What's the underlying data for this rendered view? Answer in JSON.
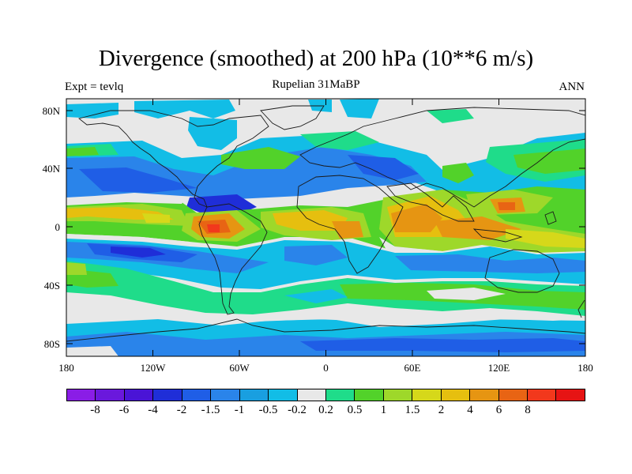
{
  "header": {
    "title": "Divergence (smoothed) at 200 hPa (10**6 m/s)",
    "subtitle": "Rupelian  31MaBP",
    "left_label": "Expt = tevlq",
    "right_label": "ANN"
  },
  "axes": {
    "lat_labels": [
      "80N",
      "40N",
      "0",
      "40S",
      "80S"
    ],
    "lon_labels": [
      "180",
      "120W",
      "60W",
      "0",
      "60E",
      "120E",
      "180"
    ]
  },
  "colorbar": {
    "colors": [
      "#8a1de6",
      "#6a18dc",
      "#4a14d6",
      "#1f2ed8",
      "#1f5ee6",
      "#2a84ea",
      "#199fe0",
      "#12bde6",
      "#e8e8e8",
      "#1fdc8a",
      "#52d22a",
      "#9ed82a",
      "#d6d81a",
      "#e6bf0f",
      "#e69512",
      "#e86414",
      "#f2381c",
      "#e61414"
    ],
    "labels": [
      "-8",
      "-6",
      "-4",
      "-2",
      "-1.5",
      "-1",
      "-0.5",
      "-0.2",
      "0.2",
      "0.5",
      "1",
      "1.5",
      "2",
      "4",
      "6",
      "8"
    ]
  }
}
